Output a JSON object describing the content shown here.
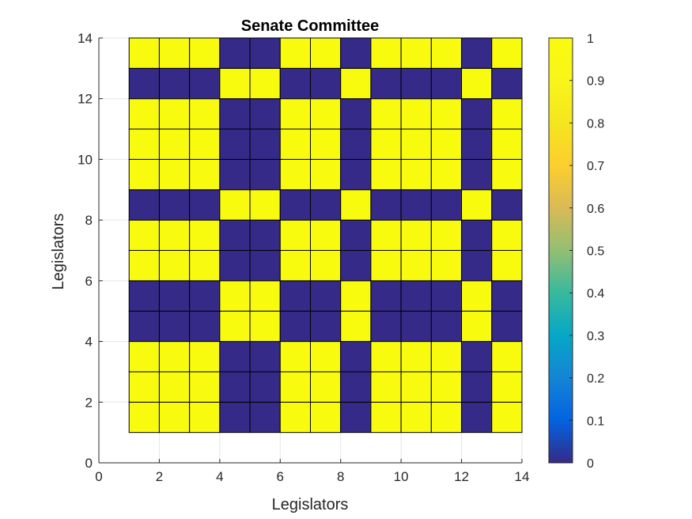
{
  "chart_data": {
    "type": "heatmap",
    "title": "Senate Committee",
    "xlabel": "Legislators",
    "ylabel": "Legislators",
    "xlim": [
      0,
      14
    ],
    "ylim": [
      0,
      14
    ],
    "x_ticks": [
      0,
      2,
      4,
      6,
      8,
      10,
      12,
      14
    ],
    "y_ticks": [
      0,
      2,
      4,
      6,
      8,
      10,
      12,
      14
    ],
    "x_tick_labels": [
      "0",
      "2",
      "4",
      "6",
      "8",
      "10",
      "12",
      "14"
    ],
    "y_tick_labels": [
      "0",
      "2",
      "4",
      "6",
      "8",
      "10",
      "12",
      "14"
    ],
    "grid": true,
    "cell_edges": [
      1,
      14
    ],
    "matrix_rows_bottom_to_top": [
      [
        1,
        1,
        1,
        0,
        0,
        1,
        1,
        0,
        1,
        1,
        1,
        0,
        1
      ],
      [
        1,
        1,
        1,
        0,
        0,
        1,
        1,
        0,
        1,
        1,
        1,
        0,
        1
      ],
      [
        1,
        1,
        1,
        0,
        0,
        1,
        1,
        0,
        1,
        1,
        1,
        0,
        1
      ],
      [
        0,
        0,
        0,
        1,
        1,
        0,
        0,
        1,
        0,
        0,
        0,
        1,
        0
      ],
      [
        0,
        0,
        0,
        1,
        1,
        0,
        0,
        1,
        0,
        0,
        0,
        1,
        0
      ],
      [
        1,
        1,
        1,
        0,
        0,
        1,
        1,
        0,
        1,
        1,
        1,
        0,
        1
      ],
      [
        1,
        1,
        1,
        0,
        0,
        1,
        1,
        0,
        1,
        1,
        1,
        0,
        1
      ],
      [
        0,
        0,
        0,
        1,
        1,
        0,
        0,
        1,
        0,
        0,
        0,
        1,
        0
      ],
      [
        1,
        1,
        1,
        0,
        0,
        1,
        1,
        0,
        1,
        1,
        1,
        0,
        1
      ],
      [
        1,
        1,
        1,
        0,
        0,
        1,
        1,
        0,
        1,
        1,
        1,
        0,
        1
      ],
      [
        1,
        1,
        1,
        0,
        0,
        1,
        1,
        0,
        1,
        1,
        1,
        0,
        1
      ],
      [
        0,
        0,
        0,
        1,
        1,
        0,
        0,
        1,
        0,
        0,
        0,
        1,
        0
      ],
      [
        1,
        1,
        1,
        0,
        0,
        1,
        1,
        0,
        1,
        1,
        1,
        0,
        1
      ]
    ],
    "colorbar": {
      "range": [
        0,
        1
      ],
      "ticks": [
        0,
        0.1,
        0.2,
        0.3,
        0.4,
        0.5,
        0.6,
        0.7,
        0.8,
        0.9,
        1
      ],
      "tick_labels": [
        "0",
        "0.1",
        "0.2",
        "0.3",
        "0.4",
        "0.5",
        "0.6",
        "0.7",
        "0.8",
        "0.9",
        "1"
      ],
      "colormap": "parula",
      "placement": "right"
    },
    "colors": {
      "low": "#352a87",
      "high": "#f9fb0e",
      "edge": "#000000",
      "grid": "#e6e6e6",
      "axis": "#262626"
    }
  }
}
